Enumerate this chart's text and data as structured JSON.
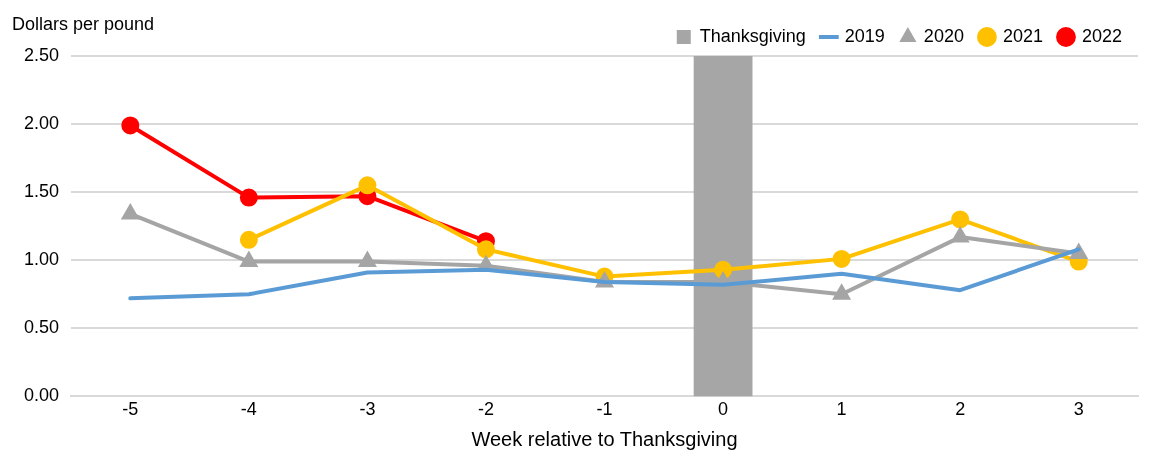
{
  "chart_data": {
    "type": "line",
    "ylabel": "Dollars per pound",
    "xlabel": "Week relative to Thanksgiving",
    "x": [
      -5,
      -4,
      -3,
      -2,
      -1,
      0,
      1,
      2,
      3
    ],
    "xlim": [
      -5.5,
      3.5
    ],
    "xticks": [
      -5,
      -4,
      -3,
      -2,
      -1,
      0,
      1,
      2,
      3
    ],
    "ylim": [
      0,
      2.5
    ],
    "yticks": [
      {
        "value": 0,
        "label": "0.00"
      },
      {
        "value": 0.5,
        "label": "0.50"
      },
      {
        "value": 1,
        "label": "1.00"
      },
      {
        "value": 1.5,
        "label": "1.50"
      },
      {
        "value": 2,
        "label": "2.00"
      },
      {
        "value": 2.5,
        "label": "2.50"
      }
    ],
    "grid": "y",
    "legend": "top right",
    "bands": [
      {
        "axis": "x",
        "from": -0.25,
        "to": 0.25,
        "label": "Thanksgiving",
        "color": "#a6a6a6"
      }
    ],
    "series": [
      {
        "name": "2019",
        "color": "#5b9bd5",
        "marker": "none",
        "values": [
          0.72,
          0.75,
          0.91,
          0.93,
          0.84,
          0.82,
          0.9,
          0.78,
          1.08
        ]
      },
      {
        "name": "2020",
        "color": "#a5a5a5",
        "marker": "triangle",
        "values": [
          1.34,
          0.99,
          0.99,
          0.96,
          0.84,
          0.84,
          0.75,
          1.17,
          1.05
        ]
      },
      {
        "name": "2021",
        "color": "#ffc000",
        "marker": "circle",
        "values": [
          null,
          1.15,
          1.55,
          1.08,
          0.88,
          0.93,
          1.01,
          1.3,
          0.99
        ]
      },
      {
        "name": "2022",
        "color": "#ff0000",
        "marker": "circle",
        "values": [
          1.99,
          1.46,
          1.47,
          1.14,
          null,
          null,
          null,
          null,
          null
        ]
      }
    ]
  }
}
